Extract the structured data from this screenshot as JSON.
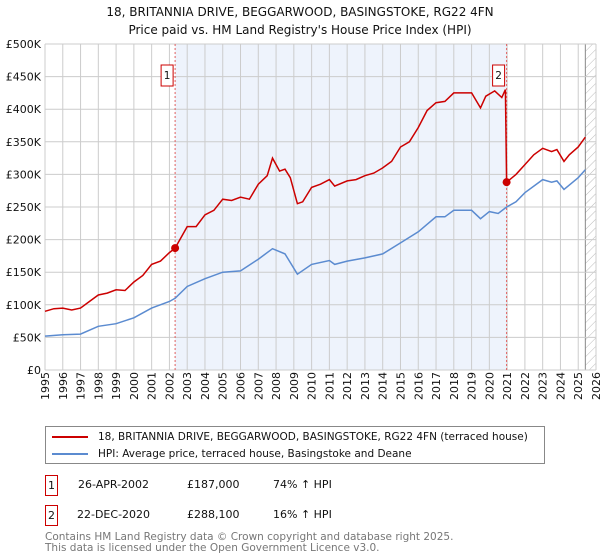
{
  "chart_data": {
    "type": "line",
    "title": "18, BRITANNIA DRIVE, BEGGARWOOD, BASINGSTOKE, RG22 4FN",
    "subtitle": "Price paid vs. HM Land Registry's House Price Index (HPI)",
    "xlim": [
      1995,
      2026
    ],
    "ylim": [
      0,
      500000
    ],
    "x_ticks": [
      "1995",
      "1996",
      "1997",
      "1998",
      "1999",
      "2000",
      "2001",
      "2002",
      "2003",
      "2004",
      "2005",
      "2006",
      "2007",
      "2008",
      "2009",
      "2010",
      "2011",
      "2012",
      "2013",
      "2014",
      "2015",
      "2016",
      "2017",
      "2018",
      "2019",
      "2020",
      "2021",
      "2022",
      "2023",
      "2024",
      "2025",
      "2026"
    ],
    "y_ticks": [
      {
        "v": 0,
        "l": "£0"
      },
      {
        "v": 50000,
        "l": "£50K"
      },
      {
        "v": 100000,
        "l": "£100K"
      },
      {
        "v": 150000,
        "l": "£150K"
      },
      {
        "v": 200000,
        "l": "£200K"
      },
      {
        "v": 250000,
        "l": "£250K"
      },
      {
        "v": 300000,
        "l": "£300K"
      },
      {
        "v": 350000,
        "l": "£350K"
      },
      {
        "v": 400000,
        "l": "£400K"
      },
      {
        "v": 450000,
        "l": "£450K"
      },
      {
        "v": 500000,
        "l": "£500K"
      }
    ],
    "grid": true,
    "shaded_range": [
      2002.32,
      2020.97
    ],
    "future_hatch_from": 2025.4,
    "series": [
      {
        "name": "18, BRITANNIA DRIVE, BEGGARWOOD, BASINGSTOKE, RG22 4FN (terraced house)",
        "color": "#cc0000",
        "x": [
          1995,
          1995.5,
          1996,
          1996.5,
          1997,
          1997.5,
          1998,
          1998.5,
          1999,
          1999.5,
          2000,
          2000.5,
          2001,
          2001.5,
          2002,
          2002.32,
          2003,
          2003.5,
          2004,
          2004.5,
          2005,
          2005.5,
          2006,
          2006.5,
          2007,
          2007.5,
          2007.8,
          2008.2,
          2008.5,
          2008.8,
          2009.2,
          2009.5,
          2010,
          2010.5,
          2011,
          2011.3,
          2012,
          2012.5,
          2013,
          2013.5,
          2014,
          2014.5,
          2015,
          2015.5,
          2016,
          2016.5,
          2017,
          2017.5,
          2018,
          2018.5,
          2019,
          2019.5,
          2019.8,
          2020.3,
          2020.7,
          2020.9,
          2020.97,
          2021.5,
          2022,
          2022.5,
          2023,
          2023.5,
          2023.8,
          2024.2,
          2024.5,
          2025,
          2025.4
        ],
        "y": [
          90000,
          94000,
          95000,
          92000,
          95000,
          105000,
          115000,
          118000,
          123000,
          122000,
          135000,
          145000,
          162000,
          167000,
          180000,
          187000,
          220000,
          220000,
          238000,
          245000,
          262000,
          260000,
          265000,
          262000,
          285000,
          298000,
          325000,
          305000,
          308000,
          295000,
          255000,
          258000,
          280000,
          285000,
          292000,
          282000,
          290000,
          292000,
          298000,
          302000,
          310000,
          320000,
          342000,
          350000,
          372000,
          398000,
          410000,
          412000,
          425000,
          425000,
          425000,
          402000,
          420000,
          428000,
          418000,
          430000,
          288100,
          300000,
          315000,
          330000,
          340000,
          335000,
          338000,
          320000,
          330000,
          342000,
          357000
        ]
      },
      {
        "name": "HPI: Average price, terraced house, Basingstoke and Deane",
        "color": "#5b8bd0",
        "x": [
          1995,
          1996,
          1997,
          1998,
          1999,
          2000,
          2001,
          2002,
          2002.32,
          2003,
          2004,
          2005,
          2006,
          2007,
          2007.8,
          2008.5,
          2009.2,
          2010,
          2011,
          2011.3,
          2012,
          2013,
          2014,
          2015,
          2016,
          2017,
          2017.5,
          2018,
          2019,
          2019.5,
          2020,
          2020.5,
          2020.97,
          2021.5,
          2022,
          2023,
          2023.5,
          2023.8,
          2024.2,
          2025,
          2025.4
        ],
        "y": [
          52000,
          54000,
          55000,
          67000,
          71000,
          80000,
          95000,
          105000,
          110000,
          128000,
          140000,
          150000,
          152000,
          170000,
          186000,
          178000,
          147000,
          162000,
          168000,
          162000,
          167000,
          172000,
          178000,
          195000,
          212000,
          235000,
          235000,
          245000,
          245000,
          232000,
          243000,
          240000,
          250000,
          258000,
          272000,
          292000,
          288000,
          290000,
          277000,
          295000,
          307000
        ]
      }
    ],
    "sales": [
      {
        "label": "1",
        "x": 2002.32,
        "y": 187000
      },
      {
        "label": "2",
        "x": 2020.97,
        "y": 288100
      }
    ]
  },
  "legend": {
    "property": "18, BRITANNIA DRIVE, BEGGARWOOD, BASINGSTOKE, RG22 4FN (terraced house)",
    "hpi": "HPI: Average price, terraced house, Basingstoke and Deane"
  },
  "sales_table": [
    {
      "num": "1",
      "date": "26-APR-2002",
      "price": "£187,000",
      "hpi": "74% ↑ HPI"
    },
    {
      "num": "2",
      "date": "22-DEC-2020",
      "price": "£288,100",
      "hpi": "16% ↑ HPI"
    }
  ],
  "footer": {
    "line1": "Contains HM Land Registry data © Crown copyright and database right 2025.",
    "line2": "This data is licensed under the Open Government Licence v3.0."
  }
}
